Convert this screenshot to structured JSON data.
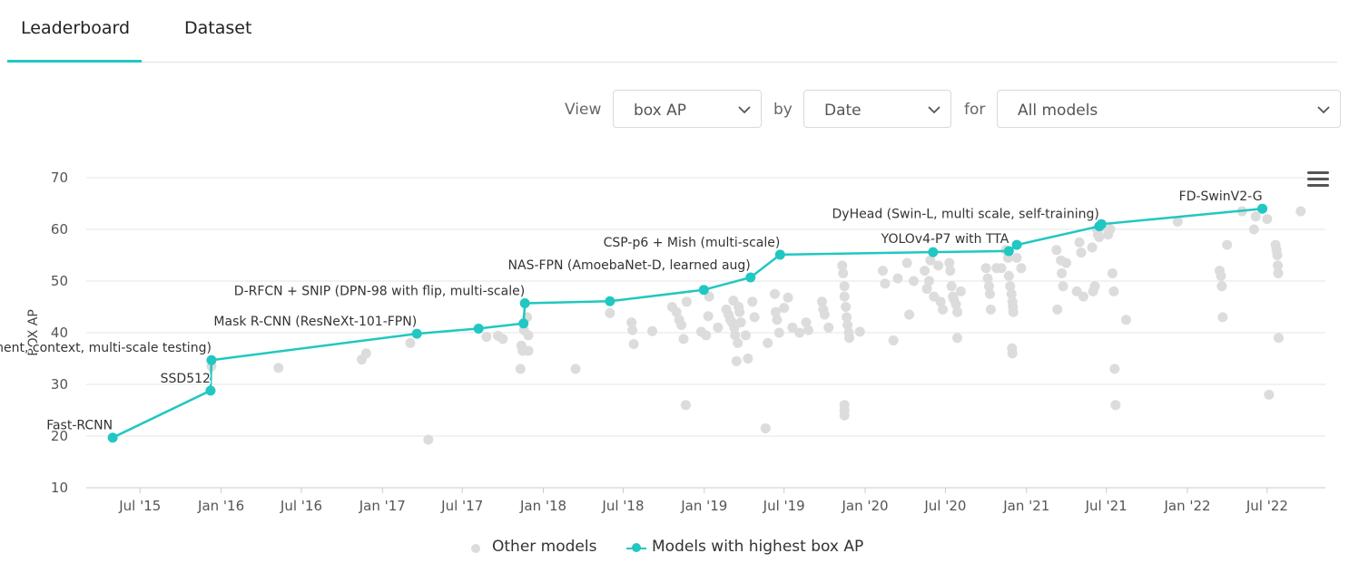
{
  "tabs": [
    {
      "label": "Leaderboard",
      "active": true
    },
    {
      "label": "Dataset",
      "active": false
    }
  ],
  "controls": {
    "view_label": "View",
    "view_value": "box AP",
    "by_label": "by",
    "by_value": "Date",
    "for_label": "for",
    "for_value": "All models"
  },
  "colors": {
    "accent": "#21c7c2",
    "other": "#dcdcdc",
    "grid": "#e6e6e6"
  },
  "chart_data": {
    "type": "scatter",
    "ylabel": "BOX AP",
    "ylim": [
      10,
      70
    ],
    "yticks": [
      10,
      20,
      30,
      40,
      50,
      60,
      70
    ],
    "xlim": [
      "2015-03-01",
      "2022-11-10"
    ],
    "xticks": [
      {
        "label": "Jul '15",
        "date": "2015-07-01"
      },
      {
        "label": "Jan '16",
        "date": "2016-01-01"
      },
      {
        "label": "Jul '16",
        "date": "2016-07-01"
      },
      {
        "label": "Jan '17",
        "date": "2017-01-01"
      },
      {
        "label": "Jul '17",
        "date": "2017-07-01"
      },
      {
        "label": "Jan '18",
        "date": "2018-01-01"
      },
      {
        "label": "Jul '18",
        "date": "2018-07-01"
      },
      {
        "label": "Jan '19",
        "date": "2019-01-01"
      },
      {
        "label": "Jul '19",
        "date": "2019-07-01"
      },
      {
        "label": "Jan '20",
        "date": "2020-01-01"
      },
      {
        "label": "Jul '20",
        "date": "2020-07-01"
      },
      {
        "label": "Jan '21",
        "date": "2021-01-01"
      },
      {
        "label": "Jul '21",
        "date": "2021-07-01"
      },
      {
        "label": "Jan '22",
        "date": "2022-01-01"
      },
      {
        "label": "Jul '22",
        "date": "2022-07-01"
      }
    ],
    "legend": [
      {
        "name": "Other models"
      },
      {
        "name": "Models with highest box AP"
      }
    ],
    "sota_series": {
      "name": "Models with highest box AP",
      "points": [
        {
          "x": "2015-04-30",
          "y": 19.7,
          "label": "Fast-RCNN"
        },
        {
          "x": "2015-12-08",
          "y": 28.8,
          "label": "SSD512"
        },
        {
          "x": "2015-12-10",
          "y": 34.7,
          "label": "Faster R-CNN (box refinement, context, multi-scale testing)"
        },
        {
          "x": "2017-03-20",
          "y": 39.8,
          "label": "Mask R-CNN (ResNeXt-101-FPN)"
        },
        {
          "x": "2017-08-07",
          "y": 40.8
        },
        {
          "x": "2017-11-17",
          "y": 41.8
        },
        {
          "x": "2017-11-20",
          "y": 45.7,
          "label": "D-RFCN + SNIP (DPN-98 with flip, multi-scale)"
        },
        {
          "x": "2018-06-01",
          "y": 46.1
        },
        {
          "x": "2018-12-31",
          "y": 48.3
        },
        {
          "x": "2019-04-16",
          "y": 50.7,
          "label": "NAS-FPN (AmoebaNet-D, learned aug)"
        },
        {
          "x": "2019-06-22",
          "y": 55.1,
          "label": "CSP-p6 + Mish (multi-scale)"
        },
        {
          "x": "2020-06-03",
          "y": 55.6
        },
        {
          "x": "2020-11-22",
          "y": 55.8,
          "label": "YOLOv4-P7 with TTA"
        },
        {
          "x": "2020-12-10",
          "y": 57.0
        },
        {
          "x": "2021-06-15",
          "y": 60.6,
          "label": "DyHead (Swin-L, multi scale, self-training)"
        },
        {
          "x": "2021-06-20",
          "y": 61.0
        },
        {
          "x": "2022-06-20",
          "y": 64.0,
          "label": "FD-SwinV2-G"
        }
      ]
    },
    "other_series": {
      "name": "Other models",
      "points": [
        {
          "x": "2015-12-10",
          "y": 33.5
        },
        {
          "x": "2016-05-10",
          "y": 33.2
        },
        {
          "x": "2016-11-15",
          "y": 34.8
        },
        {
          "x": "2016-11-25",
          "y": 36.0
        },
        {
          "x": "2017-03-05",
          "y": 38.0
        },
        {
          "x": "2017-04-15",
          "y": 19.3
        },
        {
          "x": "2017-08-25",
          "y": 39.2
        },
        {
          "x": "2017-09-20",
          "y": 39.4
        },
        {
          "x": "2017-10-01",
          "y": 38.8
        },
        {
          "x": "2017-11-10",
          "y": 33.0
        },
        {
          "x": "2017-11-12",
          "y": 37.5
        },
        {
          "x": "2017-11-15",
          "y": 36.5
        },
        {
          "x": "2017-11-18",
          "y": 40.5
        },
        {
          "x": "2017-11-25",
          "y": 43.0
        },
        {
          "x": "2017-11-28",
          "y": 39.5
        },
        {
          "x": "2017-11-28",
          "y": 36.5
        },
        {
          "x": "2018-03-15",
          "y": 33.0
        },
        {
          "x": "2018-06-01",
          "y": 43.8
        },
        {
          "x": "2018-07-20",
          "y": 42.0
        },
        {
          "x": "2018-07-22",
          "y": 40.5
        },
        {
          "x": "2018-07-25",
          "y": 37.8
        },
        {
          "x": "2018-09-05",
          "y": 40.3
        },
        {
          "x": "2018-10-20",
          "y": 45.0
        },
        {
          "x": "2018-10-30",
          "y": 44.0
        },
        {
          "x": "2018-11-05",
          "y": 42.5
        },
        {
          "x": "2018-11-10",
          "y": 41.5
        },
        {
          "x": "2018-11-15",
          "y": 38.8
        },
        {
          "x": "2018-11-20",
          "y": 26.0
        },
        {
          "x": "2018-11-22",
          "y": 46.0
        },
        {
          "x": "2018-12-25",
          "y": 40.2
        },
        {
          "x": "2019-01-05",
          "y": 39.5
        },
        {
          "x": "2019-01-10",
          "y": 43.2
        },
        {
          "x": "2019-01-12",
          "y": 47.0
        },
        {
          "x": "2019-02-01",
          "y": 41.0
        },
        {
          "x": "2019-02-20",
          "y": 44.5
        },
        {
          "x": "2019-02-25",
          "y": 43.5
        },
        {
          "x": "2019-03-01",
          "y": 42.5
        },
        {
          "x": "2019-03-05",
          "y": 42.0
        },
        {
          "x": "2019-03-08",
          "y": 46.2
        },
        {
          "x": "2019-03-10",
          "y": 41.0
        },
        {
          "x": "2019-03-12",
          "y": 39.5
        },
        {
          "x": "2019-03-15",
          "y": 34.5
        },
        {
          "x": "2019-03-18",
          "y": 38.0
        },
        {
          "x": "2019-03-20",
          "y": 45.0
        },
        {
          "x": "2019-03-22",
          "y": 44.0
        },
        {
          "x": "2019-03-25",
          "y": 42.0
        },
        {
          "x": "2019-04-05",
          "y": 39.5
        },
        {
          "x": "2019-04-10",
          "y": 35.0
        },
        {
          "x": "2019-04-20",
          "y": 46.0
        },
        {
          "x": "2019-04-25",
          "y": 43.0
        },
        {
          "x": "2019-05-20",
          "y": 21.5
        },
        {
          "x": "2019-05-25",
          "y": 38.0
        },
        {
          "x": "2019-06-10",
          "y": 47.5
        },
        {
          "x": "2019-06-12",
          "y": 44.0
        },
        {
          "x": "2019-06-15",
          "y": 42.5
        },
        {
          "x": "2019-06-20",
          "y": 40.0
        },
        {
          "x": "2019-07-01",
          "y": 44.8
        },
        {
          "x": "2019-07-10",
          "y": 46.8
        },
        {
          "x": "2019-07-20",
          "y": 41.0
        },
        {
          "x": "2019-08-05",
          "y": 40.0
        },
        {
          "x": "2019-08-20",
          "y": 42.0
        },
        {
          "x": "2019-08-25",
          "y": 40.5
        },
        {
          "x": "2019-09-25",
          "y": 46.0
        },
        {
          "x": "2019-09-28",
          "y": 44.5
        },
        {
          "x": "2019-10-01",
          "y": 43.5
        },
        {
          "x": "2019-10-10",
          "y": 41.0
        },
        {
          "x": "2019-11-10",
          "y": 53.0
        },
        {
          "x": "2019-11-12",
          "y": 51.5
        },
        {
          "x": "2019-11-15",
          "y": 49.0
        },
        {
          "x": "2019-11-15",
          "y": 47.0
        },
        {
          "x": "2019-11-18",
          "y": 45.0
        },
        {
          "x": "2019-11-20",
          "y": 43.0
        },
        {
          "x": "2019-11-22",
          "y": 41.5
        },
        {
          "x": "2019-11-25",
          "y": 40.0
        },
        {
          "x": "2019-11-26",
          "y": 39.0
        },
        {
          "x": "2019-11-15",
          "y": 26.0
        },
        {
          "x": "2019-11-15",
          "y": 25.0
        },
        {
          "x": "2019-11-15",
          "y": 24.0
        },
        {
          "x": "2019-12-20",
          "y": 40.2
        },
        {
          "x": "2020-02-10",
          "y": 52.0
        },
        {
          "x": "2020-02-15",
          "y": 49.5
        },
        {
          "x": "2020-03-05",
          "y": 38.5
        },
        {
          "x": "2020-03-15",
          "y": 50.5
        },
        {
          "x": "2020-04-05",
          "y": 53.5
        },
        {
          "x": "2020-04-10",
          "y": 43.5
        },
        {
          "x": "2020-04-20",
          "y": 50.0
        },
        {
          "x": "2020-05-15",
          "y": 52.0
        },
        {
          "x": "2020-05-20",
          "y": 48.5
        },
        {
          "x": "2020-05-25",
          "y": 50.0
        },
        {
          "x": "2020-05-28",
          "y": 54.0
        },
        {
          "x": "2020-06-05",
          "y": 47.0
        },
        {
          "x": "2020-06-15",
          "y": 53.0
        },
        {
          "x": "2020-06-20",
          "y": 46.0
        },
        {
          "x": "2020-06-25",
          "y": 44.5
        },
        {
          "x": "2020-07-10",
          "y": 53.5
        },
        {
          "x": "2020-07-12",
          "y": 52.0
        },
        {
          "x": "2020-07-15",
          "y": 49.0
        },
        {
          "x": "2020-07-18",
          "y": 47.0
        },
        {
          "x": "2020-07-20",
          "y": 46.5
        },
        {
          "x": "2020-07-25",
          "y": 45.5
        },
        {
          "x": "2020-07-28",
          "y": 44.0
        },
        {
          "x": "2020-07-28",
          "y": 39.0
        },
        {
          "x": "2020-08-05",
          "y": 48.0
        },
        {
          "x": "2020-10-01",
          "y": 52.5
        },
        {
          "x": "2020-10-05",
          "y": 50.5
        },
        {
          "x": "2020-10-08",
          "y": 49.0
        },
        {
          "x": "2020-10-10",
          "y": 47.5
        },
        {
          "x": "2020-10-12",
          "y": 44.5
        },
        {
          "x": "2020-10-25",
          "y": 52.5
        },
        {
          "x": "2020-11-05",
          "y": 52.5
        },
        {
          "x": "2020-11-15",
          "y": 56.0
        },
        {
          "x": "2020-11-20",
          "y": 54.5
        },
        {
          "x": "2020-11-22",
          "y": 51.0
        },
        {
          "x": "2020-11-25",
          "y": 49.0
        },
        {
          "x": "2020-11-28",
          "y": 47.5
        },
        {
          "x": "2020-11-30",
          "y": 46.0
        },
        {
          "x": "2020-12-01",
          "y": 45.0
        },
        {
          "x": "2020-12-02",
          "y": 44.0
        },
        {
          "x": "2020-11-29",
          "y": 37.0
        },
        {
          "x": "2020-11-30",
          "y": 36.0
        },
        {
          "x": "2020-12-10",
          "y": 54.5
        },
        {
          "x": "2020-12-20",
          "y": 52.5
        },
        {
          "x": "2021-03-10",
          "y": 56.0
        },
        {
          "x": "2021-03-12",
          "y": 44.5
        },
        {
          "x": "2021-03-20",
          "y": 54.0
        },
        {
          "x": "2021-03-22",
          "y": 51.5
        },
        {
          "x": "2021-03-25",
          "y": 49.0
        },
        {
          "x": "2021-04-01",
          "y": 53.5
        },
        {
          "x": "2021-04-25",
          "y": 48.0
        },
        {
          "x": "2021-05-01",
          "y": 57.5
        },
        {
          "x": "2021-05-05",
          "y": 55.5
        },
        {
          "x": "2021-05-10",
          "y": 47.0
        },
        {
          "x": "2021-05-30",
          "y": 56.5
        },
        {
          "x": "2021-06-01",
          "y": 48.0
        },
        {
          "x": "2021-06-05",
          "y": 49.0
        },
        {
          "x": "2021-06-10",
          "y": 60.0
        },
        {
          "x": "2021-06-12",
          "y": 59.0
        },
        {
          "x": "2021-06-15",
          "y": 58.5
        },
        {
          "x": "2021-06-20",
          "y": 60.5
        },
        {
          "x": "2021-07-05",
          "y": 59.0
        },
        {
          "x": "2021-07-10",
          "y": 60.0
        },
        {
          "x": "2021-07-15",
          "y": 51.5
        },
        {
          "x": "2021-07-18",
          "y": 48.0
        },
        {
          "x": "2021-07-20",
          "y": 33.0
        },
        {
          "x": "2021-07-22",
          "y": 26.0
        },
        {
          "x": "2021-08-15",
          "y": 42.5
        },
        {
          "x": "2021-12-10",
          "y": 61.5
        },
        {
          "x": "2022-03-15",
          "y": 52.0
        },
        {
          "x": "2022-03-18",
          "y": 51.0
        },
        {
          "x": "2022-03-20",
          "y": 49.0
        },
        {
          "x": "2022-03-22",
          "y": 43.0
        },
        {
          "x": "2022-04-01",
          "y": 57.0
        },
        {
          "x": "2022-05-05",
          "y": 63.5
        },
        {
          "x": "2022-06-01",
          "y": 60.0
        },
        {
          "x": "2022-06-05",
          "y": 62.5
        },
        {
          "x": "2022-07-01",
          "y": 62.0
        },
        {
          "x": "2022-07-05",
          "y": 28.0
        },
        {
          "x": "2022-07-20",
          "y": 57.0
        },
        {
          "x": "2022-07-22",
          "y": 56.0
        },
        {
          "x": "2022-07-24",
          "y": 55.0
        },
        {
          "x": "2022-07-25",
          "y": 53.0
        },
        {
          "x": "2022-07-26",
          "y": 51.5
        },
        {
          "x": "2022-07-27",
          "y": 39.0
        },
        {
          "x": "2022-09-15",
          "y": 63.5
        }
      ]
    }
  }
}
